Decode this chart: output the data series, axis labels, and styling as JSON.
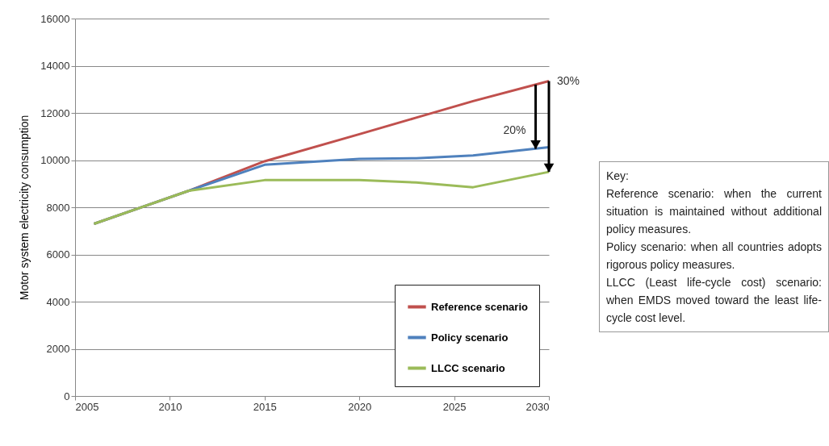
{
  "chart_data": {
    "type": "line",
    "ylabel": "Motor system electricity consumption",
    "x": [
      2006,
      2011,
      2015,
      2020,
      2023,
      2026,
      2030
    ],
    "series": [
      {
        "name": "Reference scenario",
        "color": "#c0504d",
        "values": [
          7300,
          8700,
          9950,
          11100,
          11800,
          12500,
          13350
        ]
      },
      {
        "name": "Policy scenario",
        "color": "#4f81bd",
        "values": [
          7300,
          8700,
          9800,
          10050,
          10080,
          10200,
          10550
        ]
      },
      {
        "name": "LLCC scenario",
        "color": "#9bbb59",
        "values": [
          7300,
          8700,
          9150,
          9150,
          9050,
          8850,
          9500
        ]
      }
    ],
    "xlim": [
      2005,
      2030
    ],
    "xticks": [
      2005,
      2010,
      2015,
      2020,
      2025,
      2030
    ],
    "ylim": [
      0,
      16000
    ],
    "yticks": [
      0,
      2000,
      4000,
      6000,
      8000,
      10000,
      12000,
      14000,
      16000
    ],
    "grid": "y",
    "legend": "bottom right",
    "marker": "none",
    "line_style": "solid",
    "annotations": [
      {
        "text": "20%",
        "x": 2029.3,
        "y": 10480
      },
      {
        "text": "30%",
        "x": 2030,
        "y": 9500
      },
      "Key:",
      "Reference scenario: when the current situation is maintained without additional policy measures.",
      "Policy scenario: when all countries adopts rigorous policy measures.",
      "LLCC (Least life-cycle cost) scenario: when EMDS moved toward the least life-cycle cost level."
    ]
  }
}
